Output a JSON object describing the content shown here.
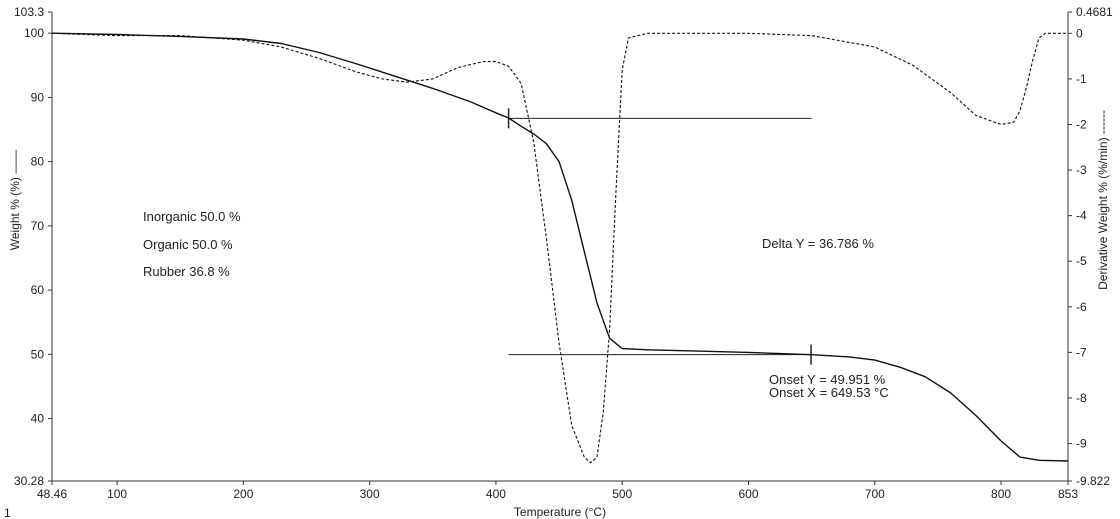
{
  "chart_data": {
    "type": "line",
    "xlabel": "Temperature (°C)",
    "ylabel_left": "Weight % (%) ——",
    "ylabel_right": "Derivative Weight % (%/min) ------",
    "xlim": [
      48.46,
      853
    ],
    "ylim_left": [
      30.28,
      103.3
    ],
    "ylim_right": [
      -9.822,
      0.4681
    ],
    "x_ticks": [
      "48.46",
      "100",
      "200",
      "300",
      "400",
      "500",
      "600",
      "700",
      "800",
      "853"
    ],
    "x_tick_values": [
      48.46,
      100,
      200,
      300,
      400,
      500,
      600,
      700,
      800,
      853
    ],
    "y_left_ticks": [
      "30.28",
      "40",
      "50",
      "60",
      "70",
      "80",
      "90",
      "100",
      "103.3"
    ],
    "y_left_tick_values": [
      30.28,
      40,
      50,
      60,
      70,
      80,
      90,
      100,
      103.3
    ],
    "y_right_ticks": [
      "-9.822",
      "-9",
      "-8",
      "-7",
      "-6",
      "-5",
      "-4",
      "-3",
      "-2",
      "-1",
      "0",
      "0.4681"
    ],
    "y_right_tick_values": [
      -9.822,
      -9,
      -8,
      -7,
      -6,
      -5,
      -4,
      -3,
      -2,
      -1,
      0,
      0.4681
    ],
    "grid": false,
    "series": [
      {
        "style": "solid",
        "axis": "left",
        "x": [
          48.46,
          100,
          150,
          200,
          230,
          260,
          290,
          320,
          350,
          380,
          400,
          410,
          420,
          430,
          440,
          450,
          460,
          470,
          480,
          490,
          500,
          520,
          560,
          600,
          650,
          680,
          700,
          720,
          740,
          760,
          780,
          800,
          815,
          830,
          853
        ],
        "y": [
          100,
          99.8,
          99.5,
          99.1,
          98.4,
          97.0,
          95.2,
          93.3,
          91.4,
          89.3,
          87.6,
          86.8,
          85.5,
          84.3,
          82.8,
          80.0,
          74.0,
          66.0,
          58.0,
          52.5,
          50.9,
          50.7,
          50.5,
          50.3,
          49.95,
          49.6,
          49.1,
          48.0,
          46.5,
          44.0,
          40.5,
          36.5,
          34.0,
          33.5,
          33.4
        ]
      },
      {
        "style": "dashed",
        "axis": "right",
        "x": [
          48.46,
          100,
          150,
          200,
          230,
          260,
          290,
          310,
          330,
          350,
          370,
          390,
          400,
          410,
          420,
          430,
          440,
          450,
          460,
          470,
          475,
          480,
          485,
          490,
          495,
          500,
          505,
          520,
          560,
          600,
          650,
          700,
          730,
          760,
          780,
          800,
          810,
          815,
          820,
          825,
          830,
          835,
          853
        ],
        "y": [
          0,
          -0.05,
          -0.05,
          -0.15,
          -0.3,
          -0.55,
          -0.85,
          -1.0,
          -1.07,
          -1.0,
          -0.75,
          -0.62,
          -0.62,
          -0.72,
          -1.1,
          -2.4,
          -4.5,
          -6.8,
          -8.6,
          -9.3,
          -9.42,
          -9.3,
          -8.3,
          -6.5,
          -3.5,
          -0.8,
          -0.1,
          0,
          0,
          0,
          -0.05,
          -0.3,
          -0.7,
          -1.3,
          -1.8,
          -2.0,
          -1.95,
          -1.7,
          -1.2,
          -0.6,
          -0.1,
          0,
          0
        ]
      }
    ],
    "annotations": {
      "inorganic": "Inorganic 50.0 %",
      "organic": "Organic 50.0 %",
      "rubber": "Rubber 36.8 %",
      "delta": "Delta Y = 36.786 %",
      "onset_y": "Onset Y = 49.951 %",
      "onset_x": "Onset X = 649.53 °C"
    },
    "reference_lines": [
      {
        "x1": 410,
        "x2": 650,
        "y": 86.74,
        "marker_x": 410
      },
      {
        "x1": 410,
        "x2": 650,
        "y": 49.951,
        "marker_x": 649.53
      }
    ],
    "bottom_left_text": "1"
  }
}
